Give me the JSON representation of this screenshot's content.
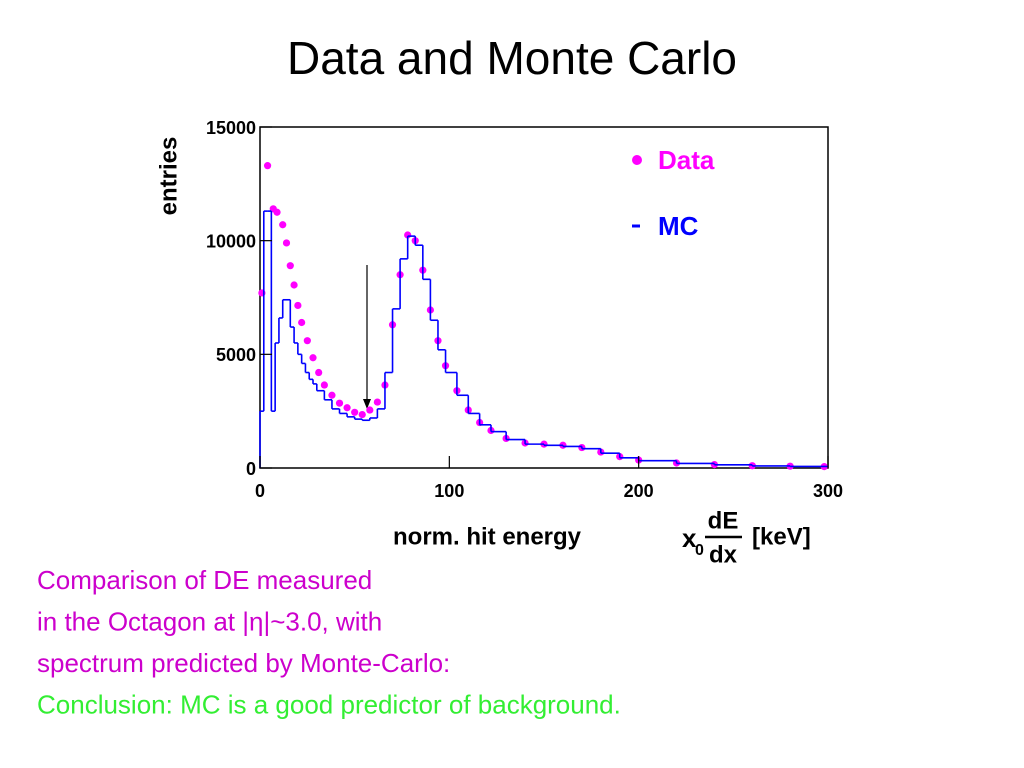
{
  "title": "Data and Monte Carlo",
  "chart_data": {
    "type": "line",
    "y_label": "entries",
    "x_label": "norm. hit energy",
    "x_label_formula": {
      "symbol": "x",
      "subscript": "0",
      "numerator": "dE",
      "denominator": "dx",
      "unit": "[keV]"
    },
    "xlim": [
      0,
      300
    ],
    "xticks": [
      0,
      100,
      200,
      300
    ],
    "ylim": [
      0,
      15000
    ],
    "yticks": [
      0,
      5000,
      10000,
      15000
    ],
    "legend": "upper right",
    "series": [
      {
        "name": "Data",
        "color": "#ff00ff",
        "style": "markers",
        "x": [
          1,
          4,
          7,
          9,
          12,
          14,
          16,
          18,
          20,
          22,
          25,
          28,
          31,
          34,
          38,
          42,
          46,
          50,
          54,
          58,
          62,
          66,
          70,
          74,
          78,
          82,
          86,
          90,
          94,
          98,
          104,
          110,
          116,
          122,
          130,
          140,
          150,
          160,
          170,
          180,
          190,
          200,
          220,
          240,
          260,
          280,
          298
        ],
        "values": [
          7700,
          13300,
          11400,
          11250,
          10700,
          9900,
          8900,
          8050,
          7150,
          6400,
          5600,
          4850,
          4200,
          3650,
          3200,
          2850,
          2650,
          2450,
          2350,
          2550,
          2900,
          3650,
          6300,
          8500,
          10250,
          10000,
          8700,
          6950,
          5600,
          4500,
          3400,
          2550,
          2000,
          1650,
          1300,
          1100,
          1050,
          1000,
          900,
          700,
          500,
          350,
          220,
          150,
          100,
          80,
          60
        ]
      },
      {
        "name": "MC",
        "color": "#0000ff",
        "style": "step",
        "x": [
          0,
          2,
          4,
          6,
          8,
          10,
          12,
          14,
          16,
          18,
          20,
          22,
          24,
          26,
          28,
          30,
          34,
          38,
          42,
          46,
          50,
          54,
          58,
          62,
          66,
          70,
          74,
          78,
          82,
          86,
          90,
          94,
          98,
          104,
          110,
          116,
          122,
          130,
          140,
          150,
          160,
          170,
          180,
          190,
          200,
          220,
          240,
          260,
          280
        ],
        "values": [
          2500,
          11300,
          11300,
          2500,
          5500,
          6600,
          7400,
          7400,
          6200,
          5500,
          5000,
          4600,
          4200,
          3900,
          3700,
          3400,
          3000,
          2600,
          2400,
          2250,
          2150,
          2100,
          2200,
          2600,
          4200,
          7000,
          9200,
          10200,
          9800,
          8300,
          6500,
          5200,
          4200,
          3200,
          2400,
          1900,
          1600,
          1250,
          1050,
          1000,
          950,
          850,
          650,
          450,
          320,
          200,
          140,
          90,
          70
        ]
      }
    ]
  },
  "text_lines": [
    {
      "text": "Comparison of DE measured",
      "color": "#cc00cc"
    },
    {
      "text": "in the Octagon at |η|~3.0, with",
      "color": "#cc00cc"
    },
    {
      "text": "spectrum predicted by  Monte-Carlo:",
      "color": "#cc00cc"
    },
    {
      "text": "Conclusion: MC is a good predictor of background.",
      "color": "#33ee33"
    }
  ]
}
